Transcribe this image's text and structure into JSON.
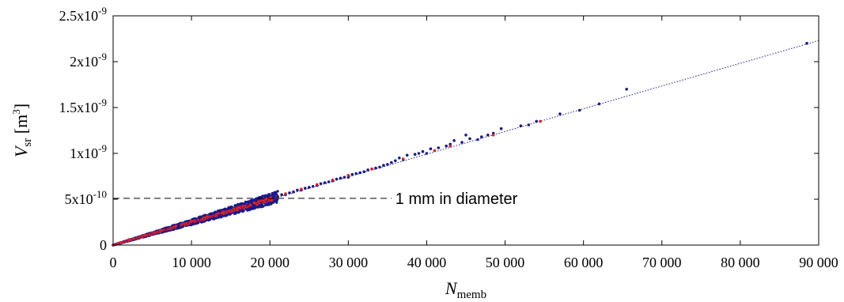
{
  "chart_data": {
    "type": "scatter",
    "title": "",
    "xlabel": {
      "main": "N",
      "sub": "memb"
    },
    "ylabel": {
      "main": "V",
      "sub": "sr",
      "unit_open": " [m",
      "unit_sup": "3",
      "unit_close": "]"
    },
    "xlim": [
      0,
      90000
    ],
    "ylim": [
      0,
      2.5e-09
    ],
    "grid": false,
    "x_ticks": [
      {
        "value": 0,
        "label": "0"
      },
      {
        "value": 10000,
        "label": "10 000"
      },
      {
        "value": 20000,
        "label": "20 000"
      },
      {
        "value": 30000,
        "label": "30 000"
      },
      {
        "value": 40000,
        "label": "40 000"
      },
      {
        "value": 50000,
        "label": "50 000"
      },
      {
        "value": 60000,
        "label": "60 000"
      },
      {
        "value": 70000,
        "label": "70 000"
      },
      {
        "value": 80000,
        "label": "80 000"
      },
      {
        "value": 90000,
        "label": "90 000"
      }
    ],
    "y_ticks": [
      {
        "value": 0,
        "base": "0",
        "exp": ""
      },
      {
        "value": 5e-10,
        "base": "5x10",
        "exp": "-10"
      },
      {
        "value": 1e-09,
        "base": "1x10",
        "exp": "-9"
      },
      {
        "value": 1.5e-09,
        "base": "1.5x10",
        "exp": "-9"
      },
      {
        "value": 2e-09,
        "base": "2x10",
        "exp": "-9"
      },
      {
        "value": 2.5e-09,
        "base": "2.5x10",
        "exp": "-9"
      }
    ],
    "fit_line": {
      "x0": 0,
      "y0": 0,
      "x1": 90000,
      "y1": 2.23e-09,
      "color": "#1a1a8c",
      "style": "dotted"
    },
    "reference_line": {
      "y": 5.1e-10,
      "x_start": 0,
      "x_end": 35500,
      "style": "dashed",
      "color": "#000000"
    },
    "annotation": {
      "text": "1 mm in diameter",
      "x": 36000,
      "y": 5.1e-10
    },
    "series": [
      {
        "color": "#1a1a8c",
        "points": [
          [
            88500,
            2.2e-09
          ],
          [
            65500,
            1.7e-09
          ],
          [
            62000,
            1.54e-09
          ],
          [
            59500,
            1.47e-09
          ],
          [
            57000,
            1.43e-09
          ],
          [
            54000,
            1.35e-09
          ],
          [
            53000,
            1.31e-09
          ],
          [
            52000,
            1.3e-09
          ],
          [
            49500,
            1.27e-09
          ],
          [
            48500,
            1.22e-09
          ],
          [
            47800,
            1.2e-09
          ],
          [
            47000,
            1.18e-09
          ],
          [
            46500,
            1.15e-09
          ],
          [
            45500,
            1.16e-09
          ],
          [
            45000,
            1.2e-09
          ],
          [
            44500,
            1.12e-09
          ],
          [
            43500,
            1.14e-09
          ],
          [
            43000,
            1.1e-09
          ],
          [
            42500,
            1.08e-09
          ],
          [
            41500,
            1.06e-09
          ],
          [
            40500,
            1.05e-09
          ],
          [
            40000,
            1e-09
          ],
          [
            39500,
            1.02e-09
          ],
          [
            39000,
            1e-09
          ],
          [
            38500,
            9.9e-10
          ],
          [
            37500,
            9.8e-10
          ],
          [
            37000,
            9.3e-10
          ],
          [
            36500,
            9.5e-10
          ],
          [
            36000,
            9.2e-10
          ],
          [
            35500,
            9e-10
          ],
          [
            35000,
            8.8e-10
          ],
          [
            34500,
            8.7e-10
          ],
          [
            34000,
            8.5e-10
          ],
          [
            33500,
            8.4e-10
          ],
          [
            33000,
            8.3e-10
          ],
          [
            32500,
            8.2e-10
          ],
          [
            32000,
            8e-10
          ],
          [
            31500,
            7.9e-10
          ],
          [
            31000,
            7.8e-10
          ],
          [
            30500,
            7.7e-10
          ],
          [
            30000,
            7.4e-10
          ],
          [
            29500,
            7.4e-10
          ],
          [
            29000,
            7.3e-10
          ],
          [
            28500,
            7.2e-10
          ],
          [
            28000,
            7e-10
          ],
          [
            27500,
            6.9e-10
          ],
          [
            27000,
            6.8e-10
          ],
          [
            26500,
            6.7e-10
          ],
          [
            26000,
            6.5e-10
          ],
          [
            25500,
            6.4e-10
          ],
          [
            25000,
            6.3e-10
          ],
          [
            24500,
            6.2e-10
          ],
          [
            24000,
            6e-10
          ],
          [
            23500,
            6e-10
          ],
          [
            23000,
            5.8e-10
          ],
          [
            22500,
            5.7e-10
          ],
          [
            22000,
            5.5e-10
          ],
          [
            21500,
            5.5e-10
          ],
          [
            21000,
            5.3e-10
          ],
          [
            20500,
            5.1e-10
          ]
        ]
      },
      {
        "color": "#e02020",
        "points": [
          [
            54500,
            1.35e-09
          ],
          [
            48500,
            1.2e-09
          ],
          [
            43000,
            1.08e-09
          ],
          [
            41000,
            1.03e-09
          ],
          [
            37000,
            9.4e-10
          ],
          [
            33000,
            8.3e-10
          ],
          [
            30000,
            7.6e-10
          ],
          [
            28000,
            7.1e-10
          ],
          [
            26000,
            6.6e-10
          ],
          [
            24000,
            6.1e-10
          ],
          [
            22000,
            5.6e-10
          ],
          [
            20000,
            5.1e-10
          ],
          [
            18000,
            4.6e-10
          ],
          [
            16000,
            4.1e-10
          ],
          [
            14000,
            3.6e-10
          ],
          [
            12000,
            3.1e-10
          ],
          [
            10000,
            2.6e-10
          ],
          [
            8000,
            2.1e-10
          ],
          [
            6000,
            1.6e-10
          ],
          [
            4000,
            1.1e-10
          ],
          [
            2000,
            6e-11
          ],
          [
            1000,
            3e-11
          ]
        ]
      }
    ],
    "dense_band": {
      "color": "#1a1a8c",
      "x_min": 0,
      "x_max": 21000,
      "slope": 2.5e-14,
      "spread": 0.12
    }
  }
}
